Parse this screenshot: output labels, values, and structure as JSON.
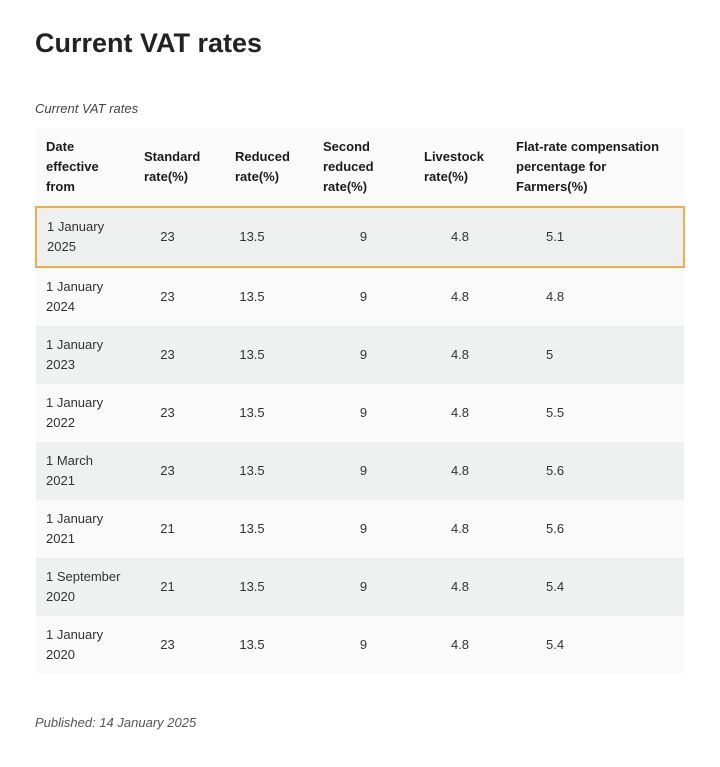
{
  "page": {
    "title": "Current VAT rates",
    "caption": "Current VAT rates",
    "published": "Published: 14 January 2025",
    "highlight_color": "#e8b04a"
  },
  "table": {
    "headers": [
      "Date effective from",
      "Standard rate(%)",
      "Reduced rate(%)",
      "Second reduced rate(%)",
      "Livestock rate(%)",
      "Flat-rate compensation percentage for Farmers(%)"
    ],
    "rows": [
      [
        "1 January 2025",
        "23",
        "13.5",
        "9",
        "4.8",
        "5.1"
      ],
      [
        "1 January 2024",
        "23",
        "13.5",
        "9",
        "4.8",
        "4.8"
      ],
      [
        "1 January 2023",
        "23",
        "13.5",
        "9",
        "4.8",
        "5"
      ],
      [
        "1 January 2022",
        "23",
        "13.5",
        "9",
        "4.8",
        "5.5"
      ],
      [
        "1 March 2021",
        "23",
        "13.5",
        "9",
        "4.8",
        "5.6"
      ],
      [
        "1  January 2021",
        "21",
        "13.5",
        "9",
        "4.8",
        "5.6"
      ],
      [
        "1 September 2020",
        "21",
        "13.5",
        "9",
        "4.8",
        "5.4"
      ],
      [
        "1 January 2020",
        "23",
        "13.5",
        "9",
        "4.8",
        "5.4"
      ]
    ]
  }
}
